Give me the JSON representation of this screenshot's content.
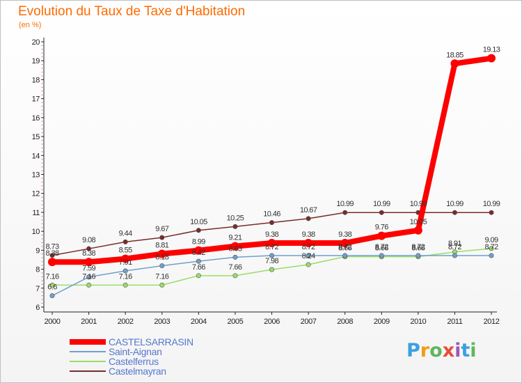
{
  "header": {
    "title": "Evolution du Taux de Taxe d'Habitation",
    "subtitle": "(en %)"
  },
  "logo": {
    "letters": [
      "P",
      "r",
      "o",
      "x",
      "i",
      "t",
      "i"
    ],
    "colors": [
      "#3aa0e0",
      "#f39c12",
      "#5cb85c",
      "#e74c3c",
      "#9b59b6",
      "#3aa0e0",
      "#5cb85c"
    ]
  },
  "chart_data": {
    "type": "line",
    "x": [
      "2000",
      "2001",
      "2002",
      "2003",
      "2004",
      "2005",
      "2006",
      "2007",
      "2008",
      "2009",
      "2010",
      "2011",
      "2012"
    ],
    "ylim": [
      6,
      20
    ],
    "yticks": [
      "6",
      "7",
      "8",
      "9",
      "10",
      "11",
      "12",
      "13",
      "14",
      "15",
      "16",
      "17",
      "18",
      "19",
      "20"
    ],
    "grid": false,
    "legend_position": "bottom-left",
    "series": [
      {
        "name": "CASTELSARRASIN",
        "color": "#ff0000",
        "values": [
          8.38,
          8.38,
          8.55,
          8.81,
          8.99,
          9.21,
          9.38,
          9.38,
          9.38,
          9.76,
          10.05,
          18.85,
          19.13
        ],
        "labels": [
          "8.38",
          "8.38",
          "8.55",
          "8.81",
          "8.99",
          "9.21",
          "9.38",
          "9.38",
          "9.38",
          "9.76",
          "10.05",
          "18.85",
          "19.13"
        ]
      },
      {
        "name": "Saint-Aignan",
        "color": "#6fa0cc",
        "values": [
          6.6,
          7.59,
          7.91,
          8.18,
          8.42,
          8.63,
          8.72,
          8.72,
          8.72,
          8.72,
          8.72,
          8.72,
          8.72
        ],
        "labels": [
          "6.6",
          "7.59",
          "7.91",
          "8.18",
          "8.42",
          "8.63",
          "8.72",
          "8.72",
          "8.72",
          "8.72",
          "8.72",
          "8.72",
          "8.72"
        ]
      },
      {
        "name": "Castelferrus",
        "color": "#99dd66",
        "values": [
          7.16,
          7.16,
          7.16,
          7.16,
          7.66,
          7.66,
          7.98,
          8.24,
          8.66,
          8.66,
          8.66,
          8.91,
          9.09
        ],
        "labels": [
          "7.16",
          "7.16",
          "7.16",
          "7.16",
          "7.66",
          "7.66",
          "7.98",
          "8.24",
          "8.66",
          "8.66",
          "8.66",
          "8.91",
          "9.09"
        ]
      },
      {
        "name": "Castelmayran",
        "color": "#7a2a2a",
        "values": [
          8.73,
          9.08,
          9.44,
          9.67,
          10.05,
          10.25,
          10.46,
          10.67,
          10.99,
          10.99,
          10.99,
          10.99,
          10.99
        ],
        "labels": [
          "8.73",
          "9.08",
          "9.44",
          "9.67",
          "10.05",
          "10.25",
          "10.46",
          "10.67",
          "10.99",
          "10.99",
          "10.99",
          "10.99",
          "10.99"
        ]
      }
    ]
  }
}
